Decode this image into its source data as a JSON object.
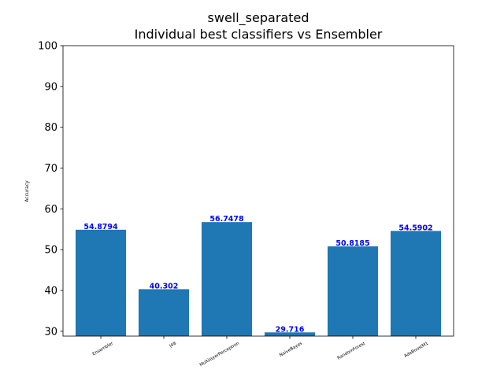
{
  "chart_data": {
    "type": "bar",
    "title": "swell_separated",
    "subtitle": "Individual best classifiers vs Ensembler",
    "xlabel": "",
    "ylabel": "Accuracy",
    "categories": [
      "Ensembler",
      "J48",
      "MultilayerPerceptron",
      "NaiveBayes",
      "RandomForest",
      "AdaBoostM1"
    ],
    "values": [
      54.8794,
      40.302,
      56.7478,
      29.716,
      50.8185,
      54.5902
    ],
    "value_labels": [
      "54.8794",
      "40.302",
      "56.7478",
      "29.716",
      "50.8185",
      "54.5902"
    ],
    "ylim": [
      28.8,
      100
    ],
    "yticks": [
      30,
      40,
      50,
      60,
      70,
      80,
      90,
      100
    ],
    "ytick_labels": [
      "30",
      "40",
      "50",
      "60",
      "70",
      "80",
      "90",
      "100"
    ],
    "grid": false,
    "colors": {
      "bar": "#1f77b4",
      "value_label": "#0000ff",
      "axis": "#000000"
    }
  }
}
